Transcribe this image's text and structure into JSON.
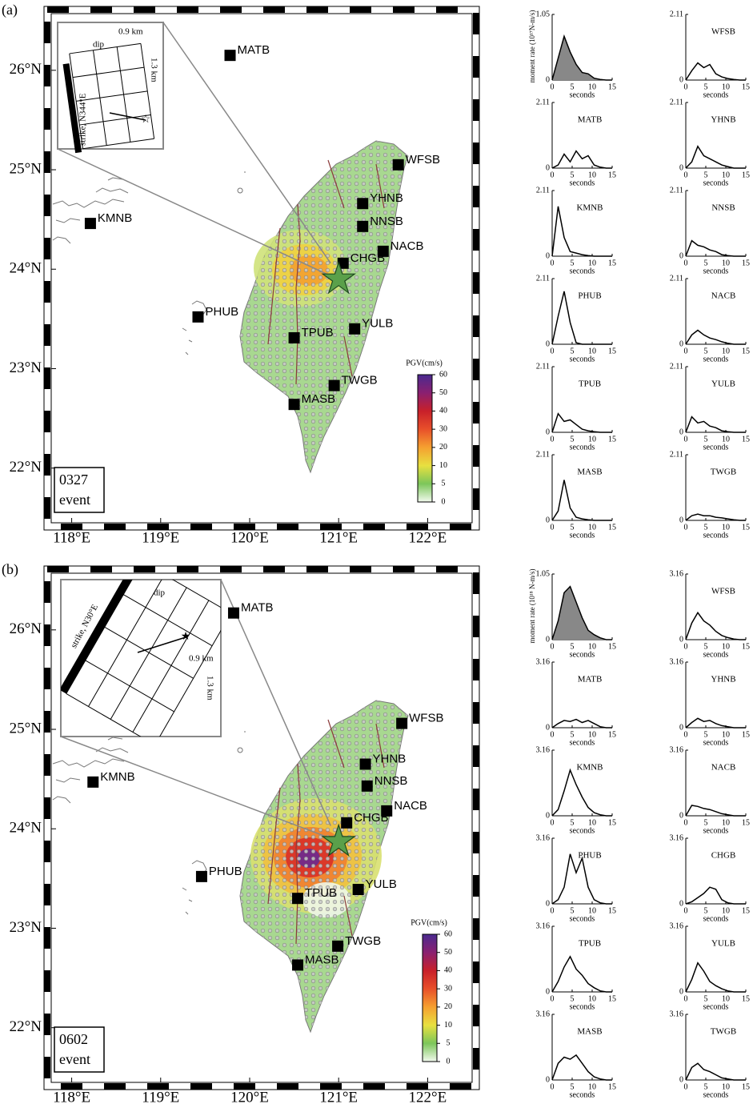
{
  "panels": [
    {
      "label": "(a)",
      "event": [
        "0327",
        "event"
      ],
      "map": {
        "xlim": [
          117.77,
          122.5
        ],
        "ylim": [
          21.45,
          26.57
        ],
        "xticks": [
          {
            "value": 118,
            "label": "118°E"
          },
          {
            "value": 119,
            "label": "119°E"
          },
          {
            "value": 120,
            "label": "120°E"
          },
          {
            "value": 121,
            "label": "121°E"
          },
          {
            "value": 122,
            "label": "122°E"
          }
        ],
        "yticks": [
          {
            "value": 22,
            "label": "22°N"
          },
          {
            "value": 23,
            "label": "23°N"
          },
          {
            "value": 24,
            "label": "24°N"
          },
          {
            "value": 25,
            "label": "25°N"
          },
          {
            "value": 26,
            "label": "26°N"
          }
        ],
        "stations": [
          {
            "name": "MATB",
            "lon": 119.78,
            "lat": 26.15
          },
          {
            "name": "WFSB",
            "lon": 121.67,
            "lat": 25.05
          },
          {
            "name": "YHNB",
            "lon": 121.27,
            "lat": 24.66
          },
          {
            "name": "NNSB",
            "lon": 121.27,
            "lat": 24.43
          },
          {
            "name": "NACB",
            "lon": 121.5,
            "lat": 24.18
          },
          {
            "name": "CHGB",
            "lon": 121.05,
            "lat": 24.06
          },
          {
            "name": "KMNB",
            "lon": 118.21,
            "lat": 24.46
          },
          {
            "name": "PHUB",
            "lon": 119.42,
            "lat": 23.52
          },
          {
            "name": "TPUB",
            "lon": 120.5,
            "lat": 23.31
          },
          {
            "name": "YULB",
            "lon": 121.18,
            "lat": 23.4
          },
          {
            "name": "TWGB",
            "lon": 120.95,
            "lat": 22.83
          },
          {
            "name": "MASB",
            "lon": 120.5,
            "lat": 22.64
          }
        ],
        "epicenter": {
          "lon": 121.0,
          "lat": 23.9
        },
        "inset": {
          "dip": "dip",
          "width": "0.9 km",
          "length": "1.3 km",
          "strike": "strike, N344°E"
        },
        "colorbar": {
          "title": "PGV(cm/s)",
          "ticks": [
            0,
            5,
            10,
            20,
            30,
            40,
            50,
            60
          ],
          "colors": [
            "#f2faee",
            "#7cc65a",
            "#e8e040",
            "#f5a030",
            "#e8502a",
            "#c8202a",
            "#8a2070",
            "#4a2a90"
          ]
        }
      },
      "moment_rates": {
        "ylabel": "moment rate (10¹⁷N-m/s)",
        "xlabel": "seconds",
        "xlim": [
          0,
          15
        ],
        "xticks": [
          0,
          5,
          10,
          15
        ],
        "x": [
          0,
          1.5,
          3,
          4.5,
          6,
          7.5,
          9,
          10.5,
          12,
          13.5,
          15
        ],
        "plots": [
          {
            "ylim": [
              0,
              1.05
            ],
            "yticks": [
              0,
              1.05
            ],
            "values": [
              0,
              0.35,
              0.7,
              0.45,
              0.25,
              0.12,
              0.1,
              0.03,
              0.01,
              0,
              0
            ]
          },
          {
            "name": "MATB",
            "ylim": [
              0,
              2.11
            ],
            "yticks": [
              0,
              2.11
            ],
            "values": [
              0,
              0.1,
              0.45,
              0.2,
              0.55,
              0.3,
              0.4,
              0.1,
              0.03,
              0,
              0
            ]
          },
          {
            "name": "KMNB",
            "ylim": [
              0,
              2.11
            ],
            "yticks": [
              0,
              2.11
            ],
            "values": [
              0,
              1.6,
              0.6,
              0.15,
              0.1,
              0.05,
              0.02,
              0,
              0,
              0,
              0
            ]
          },
          {
            "name": "PHUB",
            "ylim": [
              0,
              2.11
            ],
            "yticks": [
              0,
              2.11
            ],
            "values": [
              0,
              0.9,
              1.7,
              0.7,
              0.05,
              0,
              0,
              0,
              0,
              0,
              0
            ]
          },
          {
            "name": "TPUB",
            "ylim": [
              0,
              2.11
            ],
            "yticks": [
              0,
              2.11
            ],
            "values": [
              0,
              0.6,
              0.35,
              0.4,
              0.25,
              0.1,
              0.05,
              0.02,
              0,
              0,
              0
            ]
          },
          {
            "name": "MASB",
            "ylim": [
              0,
              2.11
            ],
            "yticks": [
              0,
              2.11
            ],
            "values": [
              0,
              0.3,
              1.3,
              0.4,
              0.1,
              0.05,
              0.02,
              0,
              0,
              0,
              0
            ]
          },
          {
            "name": "WFSB",
            "ylim": [
              0,
              2.11
            ],
            "yticks": [
              0,
              2.11
            ],
            "values": [
              0,
              0.3,
              0.55,
              0.4,
              0.5,
              0.2,
              0.1,
              0.05,
              0.02,
              0,
              0
            ]
          },
          {
            "name": "YHNB",
            "ylim": [
              0,
              2.11
            ],
            "yticks": [
              0,
              2.11
            ],
            "values": [
              0,
              0.2,
              0.7,
              0.4,
              0.3,
              0.2,
              0.1,
              0.05,
              0,
              0,
              0
            ]
          },
          {
            "name": "NNSB",
            "ylim": [
              0,
              2.11
            ],
            "yticks": [
              0,
              2.11
            ],
            "values": [
              0,
              0.5,
              0.35,
              0.3,
              0.2,
              0.15,
              0.05,
              0.02,
              0,
              0,
              0
            ]
          },
          {
            "name": "NACB",
            "ylim": [
              0,
              2.11
            ],
            "yticks": [
              0,
              2.11
            ],
            "values": [
              0,
              0.3,
              0.45,
              0.3,
              0.2,
              0.15,
              0.08,
              0.03,
              0,
              0,
              0
            ]
          },
          {
            "name": "YULB",
            "ylim": [
              0,
              2.11
            ],
            "yticks": [
              0,
              2.11
            ],
            "values": [
              0,
              0.5,
              0.3,
              0.35,
              0.2,
              0.15,
              0.05,
              0.02,
              0,
              0,
              0
            ]
          },
          {
            "name": "TWGB",
            "ylim": [
              0,
              2.11
            ],
            "yticks": [
              0,
              2.11
            ],
            "values": [
              0,
              0.15,
              0.2,
              0.15,
              0.15,
              0.1,
              0.08,
              0.05,
              0.02,
              0,
              0
            ]
          }
        ]
      }
    },
    {
      "label": "(b)",
      "event": [
        "0602",
        "event"
      ],
      "map": {
        "xlim": [
          117.77,
          122.5
        ],
        "ylim": [
          21.45,
          26.57
        ],
        "xticks": [
          {
            "value": 118,
            "label": "118°E"
          },
          {
            "value": 119,
            "label": "119°E"
          },
          {
            "value": 120,
            "label": "120°E"
          },
          {
            "value": 121,
            "label": "121°E"
          },
          {
            "value": 122,
            "label": "122°E"
          }
        ],
        "yticks": [
          {
            "value": 22,
            "label": "22°N"
          },
          {
            "value": 23,
            "label": "23°N"
          },
          {
            "value": 24,
            "label": "24°N"
          },
          {
            "value": 25,
            "label": "25°N"
          },
          {
            "value": 26,
            "label": "26°N"
          }
        ],
        "stations": [
          {
            "name": "MATB",
            "lon": 119.82,
            "lat": 26.17
          },
          {
            "name": "WFSB",
            "lon": 121.71,
            "lat": 25.06
          },
          {
            "name": "YHNB",
            "lon": 121.3,
            "lat": 24.65
          },
          {
            "name": "NNSB",
            "lon": 121.32,
            "lat": 24.43
          },
          {
            "name": "NACB",
            "lon": 121.54,
            "lat": 24.18
          },
          {
            "name": "CHGB",
            "lon": 121.09,
            "lat": 24.06
          },
          {
            "name": "KMNB",
            "lon": 118.24,
            "lat": 24.47
          },
          {
            "name": "PHUB",
            "lon": 119.46,
            "lat": 23.52
          },
          {
            "name": "TPUB",
            "lon": 120.54,
            "lat": 23.3
          },
          {
            "name": "YULB",
            "lon": 121.22,
            "lat": 23.39
          },
          {
            "name": "TWGB",
            "lon": 120.99,
            "lat": 22.82
          },
          {
            "name": "MASB",
            "lon": 120.54,
            "lat": 22.63
          }
        ],
        "epicenter": {
          "lon": 121.0,
          "lat": 23.87
        },
        "inset": {
          "dip": "dip",
          "width": "0.9 km",
          "length": "1.3 km",
          "strike": "strike, N30°E"
        },
        "colorbar": {
          "title": "PGV(cm/s)",
          "ticks": [
            0,
            5,
            10,
            20,
            30,
            40,
            50,
            60
          ],
          "colors": [
            "#f2faee",
            "#7cc65a",
            "#e8e040",
            "#f5a030",
            "#e8502a",
            "#c8202a",
            "#8a2070",
            "#4a2a90"
          ]
        }
      },
      "moment_rates": {
        "ylabel": "moment rate (10¹⁸ N-m/s)",
        "xlabel": "seconds",
        "xlim": [
          0,
          15
        ],
        "xticks": [
          0,
          5,
          10,
          15
        ],
        "x": [
          0,
          1.5,
          3,
          4.5,
          6,
          7.5,
          9,
          10.5,
          12,
          13.5,
          15
        ],
        "plots": [
          {
            "ylim": [
              0,
              1.05
            ],
            "yticks": [
              0,
              1.05
            ],
            "values": [
              0,
              0.3,
              0.75,
              0.85,
              0.6,
              0.35,
              0.15,
              0.08,
              0.03,
              0,
              0
            ]
          },
          {
            "name": "MATB",
            "ylim": [
              0,
              3.16
            ],
            "yticks": [
              0,
              3.16
            ],
            "values": [
              0,
              0.2,
              0.35,
              0.3,
              0.4,
              0.25,
              0.35,
              0.2,
              0.05,
              0,
              0
            ]
          },
          {
            "name": "KMNB",
            "ylim": [
              0,
              3.16
            ],
            "yticks": [
              0,
              3.16
            ],
            "values": [
              0,
              0.3,
              1.2,
              2.2,
              1.5,
              0.9,
              0.4,
              0.15,
              0.05,
              0,
              0
            ]
          },
          {
            "name": "PHUB",
            "ylim": [
              0,
              3.16
            ],
            "yticks": [
              0,
              3.16
            ],
            "values": [
              0,
              0.2,
              0.8,
              2.4,
              1.5,
              2.2,
              0.8,
              0.2,
              0.05,
              0,
              0
            ]
          },
          {
            "name": "TPUB",
            "ylim": [
              0,
              3.16
            ],
            "yticks": [
              0,
              3.16
            ],
            "values": [
              0,
              0.5,
              1.2,
              1.7,
              1.1,
              0.8,
              0.4,
              0.2,
              0.05,
              0,
              0
            ]
          },
          {
            "name": "MASB",
            "ylim": [
              0,
              3.16
            ],
            "yticks": [
              0,
              3.16
            ],
            "values": [
              0,
              0.8,
              1.1,
              1.0,
              1.2,
              0.8,
              0.4,
              0.15,
              0.05,
              0,
              0
            ]
          },
          {
            "name": "WFSB",
            "ylim": [
              0,
              3.16
            ],
            "yticks": [
              0,
              3.16
            ],
            "values": [
              0,
              0.8,
              1.3,
              0.9,
              0.7,
              0.4,
              0.2,
              0.1,
              0.03,
              0,
              0
            ]
          },
          {
            "name": "YHNB",
            "ylim": [
              0,
              3.16
            ],
            "yticks": [
              0,
              3.16
            ],
            "values": [
              0,
              0.25,
              0.45,
              0.3,
              0.35,
              0.2,
              0.1,
              0.05,
              0,
              0,
              0
            ]
          },
          {
            "name": "NACB",
            "ylim": [
              0,
              3.16
            ],
            "yticks": [
              0,
              3.16
            ],
            "values": [
              0,
              0.5,
              0.45,
              0.35,
              0.3,
              0.2,
              0.1,
              0.05,
              0,
              0,
              0
            ]
          },
          {
            "name": "CHGB",
            "ylim": [
              0,
              3.16
            ],
            "yticks": [
              0,
              3.16
            ],
            "values": [
              0,
              0.1,
              0.3,
              0.5,
              0.8,
              0.7,
              0.2,
              0.05,
              0,
              0,
              0
            ]
          },
          {
            "name": "YULB",
            "ylim": [
              0,
              3.16
            ],
            "yticks": [
              0,
              3.16
            ],
            "values": [
              0,
              0.6,
              1.4,
              1.0,
              0.5,
              0.3,
              0.15,
              0.05,
              0,
              0,
              0
            ]
          },
          {
            "name": "TWGB",
            "ylim": [
              0,
              3.16
            ],
            "yticks": [
              0,
              3.16
            ],
            "values": [
              0,
              0.6,
              0.8,
              0.5,
              0.4,
              0.25,
              0.1,
              0.05,
              0,
              0,
              0
            ]
          }
        ]
      }
    }
  ]
}
